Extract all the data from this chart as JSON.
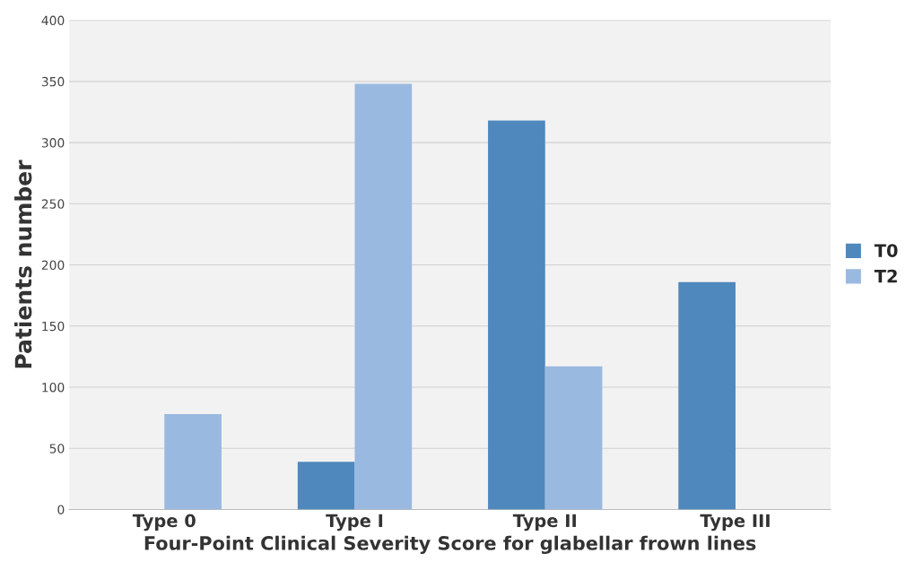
{
  "chart_data": {
    "type": "bar",
    "categories": [
      "Type 0",
      "Type I",
      "Type II",
      "Type III"
    ],
    "series": [
      {
        "name": "T0",
        "color": "#4f88bd",
        "values": [
          null,
          39,
          318,
          186
        ]
      },
      {
        "name": "T2",
        "color": "#9ab9e0",
        "values": [
          78,
          348,
          117,
          null
        ]
      }
    ],
    "xlabel": "Four-Point Clinical Severity Score for glabellar frown lines",
    "ylabel": "Patients number",
    "ylim": [
      0,
      400
    ],
    "yticks": [
      0,
      50,
      100,
      150,
      200,
      250,
      300,
      350,
      400
    ],
    "grid": "y",
    "legend": "right"
  }
}
